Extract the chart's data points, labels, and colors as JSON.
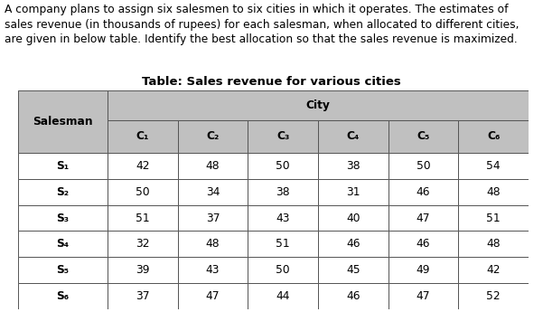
{
  "lines": [
    "A company plans to assign six salesmen to six cities in which it operates. The estimates of",
    "sales revenue (in thousands of rupees) for each salesman, when allocated to different cities,",
    "are given in below table. Identify the best allocation so that the sales revenue is maximized."
  ],
  "table_title": "Table: Sales revenue for various cities",
  "col_header_top": "City",
  "col_header_sub": [
    "C₁",
    "C₂",
    "C₃",
    "C₄",
    "C₅",
    "C₆"
  ],
  "row_header_label": "Salesman",
  "row_headers": [
    "S₁",
    "S₂",
    "S₃",
    "S₄",
    "S₅",
    "S₆"
  ],
  "data": [
    [
      42,
      48,
      50,
      38,
      50,
      54
    ],
    [
      50,
      34,
      38,
      31,
      46,
      48
    ],
    [
      51,
      37,
      43,
      40,
      47,
      51
    ],
    [
      32,
      48,
      51,
      46,
      46,
      48
    ],
    [
      39,
      43,
      50,
      45,
      49,
      42
    ],
    [
      37,
      47,
      44,
      46,
      47,
      52
    ]
  ],
  "header_bg": "#c0c0c0",
  "cell_bg": "#ffffff",
  "border_color": "#555555",
  "text_color": "#000000",
  "para_fontsize": 8.8,
  "title_fontsize": 9.5,
  "header_fontsize": 8.8,
  "cell_fontsize": 8.8,
  "fig_width": 6.01,
  "fig_height": 3.45,
  "dpi": 100
}
